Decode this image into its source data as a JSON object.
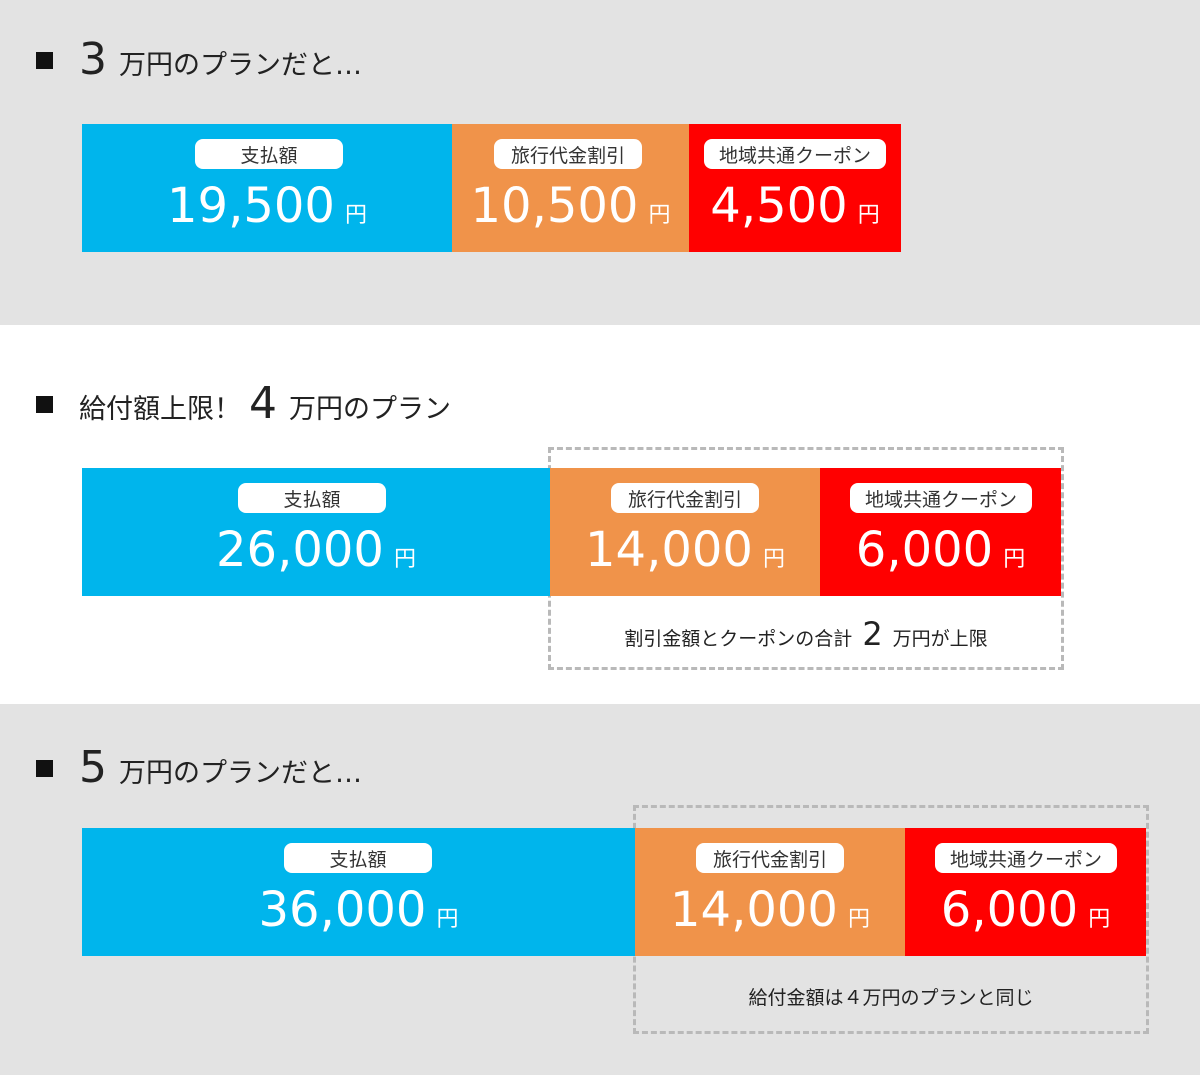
{
  "plan1": {
    "heading": {
      "number": "3",
      "text": "万円のプランだと…"
    },
    "pay": {
      "label": "支払額",
      "amount": "19,500",
      "unit": "円"
    },
    "discount": {
      "label": "旅行代金割引",
      "amount": "10,500",
      "unit": "円"
    },
    "coupon": {
      "label": "地域共通クーポン",
      "amount": "4,500",
      "unit": "円"
    }
  },
  "plan2": {
    "heading": {
      "prefix": "給付額上限！",
      "number": "4",
      "text": "万円のプラン"
    },
    "pay": {
      "label": "支払額",
      "amount": "26,000",
      "unit": "円"
    },
    "discount": {
      "label": "旅行代金割引",
      "amount": "14,000",
      "unit": "円"
    },
    "coupon": {
      "label": "地域共通クーポン",
      "amount": "6,000",
      "unit": "円"
    },
    "note": {
      "before": "割引金額とクーポンの合計",
      "number": "2",
      "after": "万円が上限"
    }
  },
  "plan3": {
    "heading": {
      "number": "5",
      "text": "万円のプランだと…"
    },
    "pay": {
      "label": "支払額",
      "amount": "36,000",
      "unit": "円"
    },
    "discount": {
      "label": "旅行代金割引",
      "amount": "14,000",
      "unit": "円"
    },
    "coupon": {
      "label": "地域共通クーポン",
      "amount": "6,000",
      "unit": "円"
    },
    "note": {
      "text": "給付金額は４万円のプランと同じ"
    }
  },
  "colors": {
    "pay": "#00b5ec",
    "discount": "#f0934a",
    "coupon": "#ff0000",
    "background": "#e3e3e3"
  }
}
